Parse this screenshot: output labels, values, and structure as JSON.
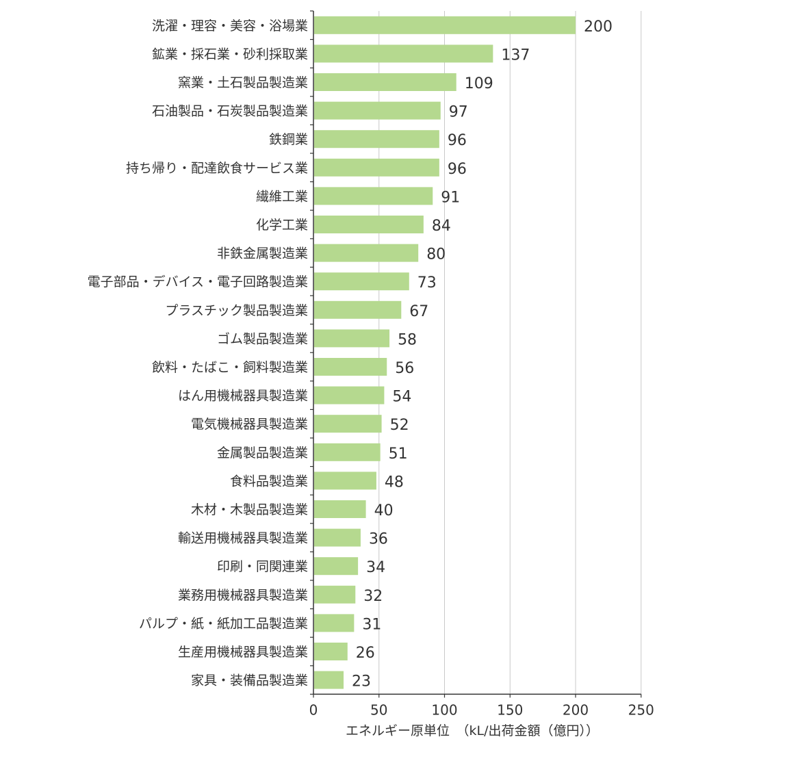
{
  "chart_data": {
    "type": "bar",
    "orientation": "horizontal",
    "categories": [
      "洗濯・理容・美容・浴場業",
      "鉱業・採石業・砂利採取業",
      "窯業・土石製品製造業",
      "石油製品・石炭製品製造業",
      "鉄鋼業",
      "持ち帰り・配達飲食サービス業",
      "繊維工業",
      "化学工業",
      "非鉄金属製造業",
      "電子部品・デバイス・電子回路製造業",
      "プラスチック製品製造業",
      "ゴム製品製造業",
      "飲料・たばこ・飼料製造業",
      "はん用機械器具製造業",
      "電気機械器具製造業",
      "金属製品製造業",
      "食料品製造業",
      "木材・木製品製造業",
      "輸送用機械器具製造業",
      "印刷・同関連業",
      "業務用機械器具製造業",
      "パルプ・紙・紙加工品製造業",
      "生産用機械器具製造業",
      "家具・装備品製造業"
    ],
    "values": [
      200,
      137,
      109,
      97,
      96,
      96,
      91,
      84,
      80,
      73,
      67,
      58,
      56,
      54,
      52,
      51,
      48,
      40,
      36,
      34,
      32,
      31,
      26,
      23
    ],
    "value_labels": [
      "200",
      "137",
      "109",
      "97",
      "96",
      "96",
      "91",
      "84",
      "80",
      "73",
      "67",
      "58",
      "56",
      "54",
      "52",
      "51",
      "48",
      "40",
      "36",
      "34",
      "32",
      "31",
      "26",
      "23"
    ],
    "xlabel": "エネルギー原単位　（kL/出荷金額（億円））",
    "xlim": [
      0,
      250
    ],
    "xticks": [
      "0",
      "50",
      "100",
      "150",
      "200",
      "250"
    ],
    "tick_values": [
      0,
      50,
      100,
      150,
      200,
      250
    ],
    "grid": "vertical",
    "bar_color": "#b5d98f"
  }
}
